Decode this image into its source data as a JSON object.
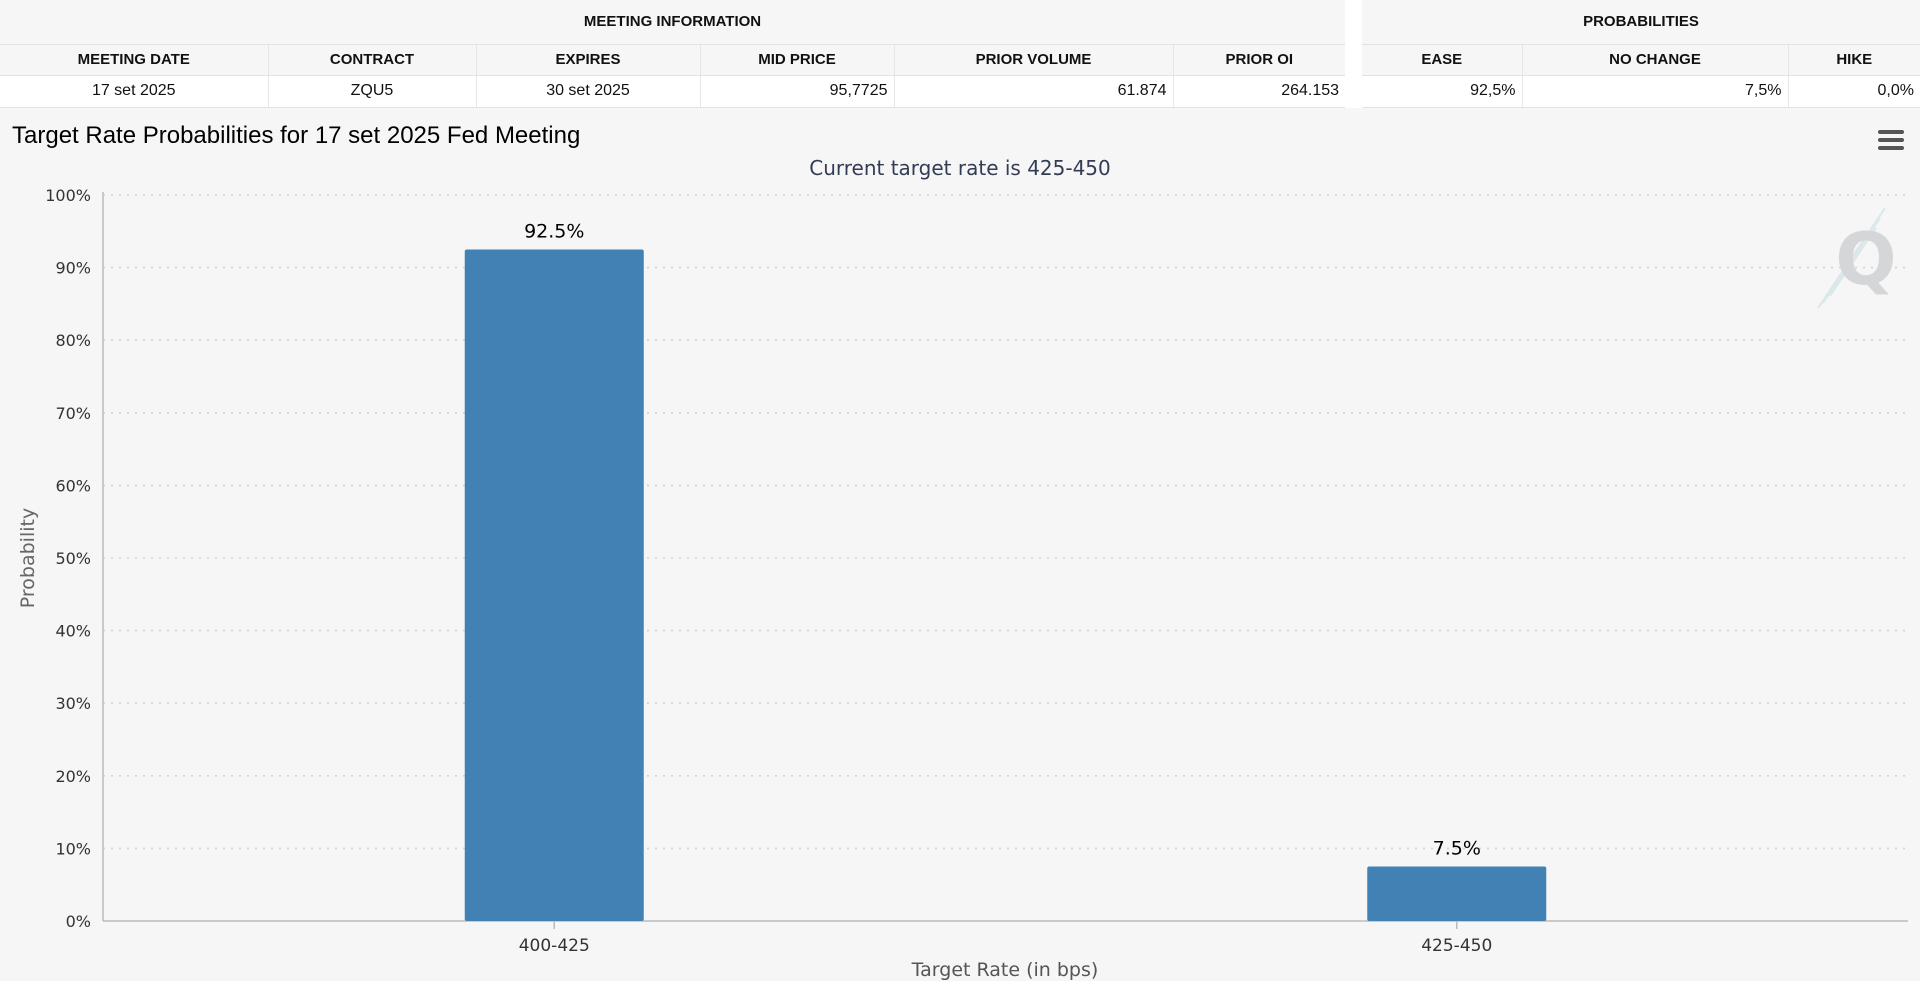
{
  "meeting_info": {
    "group_label": "MEETING INFORMATION",
    "columns": [
      "MEETING DATE",
      "CONTRACT",
      "EXPIRES",
      "MID PRICE",
      "PRIOR VOLUME",
      "PRIOR OI"
    ],
    "row": {
      "meeting_date": "17 set 2025",
      "contract": "ZQU5",
      "expires": "30 set 2025",
      "mid_price": "95,7725",
      "prior_volume": "61.874",
      "prior_oi": "264.153"
    }
  },
  "probabilities": {
    "group_label": "PROBABILITIES",
    "columns": [
      "EASE",
      "NO CHANGE",
      "HIKE"
    ],
    "row": {
      "ease": "92,5%",
      "no_change": "7,5%",
      "hike": "0,0%"
    }
  },
  "chart_data": {
    "type": "bar",
    "title": "Target Rate Probabilities for 17 set 2025 Fed Meeting",
    "subtitle": "Current target rate is 425-450",
    "xlabel": "Target Rate (in bps)",
    "ylabel": "Probability",
    "categories": [
      "400-425",
      "425-450"
    ],
    "values": [
      92.5,
      7.5
    ],
    "data_labels": [
      "92.5%",
      "7.5%"
    ],
    "ylim": [
      0,
      100
    ],
    "yticks": [
      0,
      10,
      20,
      30,
      40,
      50,
      60,
      70,
      80,
      90,
      100
    ],
    "ytick_format": "{v}%",
    "grid": true,
    "bar_color": "#4181b3",
    "legend": "none"
  },
  "watermark": {
    "letter": "Q"
  },
  "icons": {
    "menu": "hamburger-menu-icon"
  }
}
